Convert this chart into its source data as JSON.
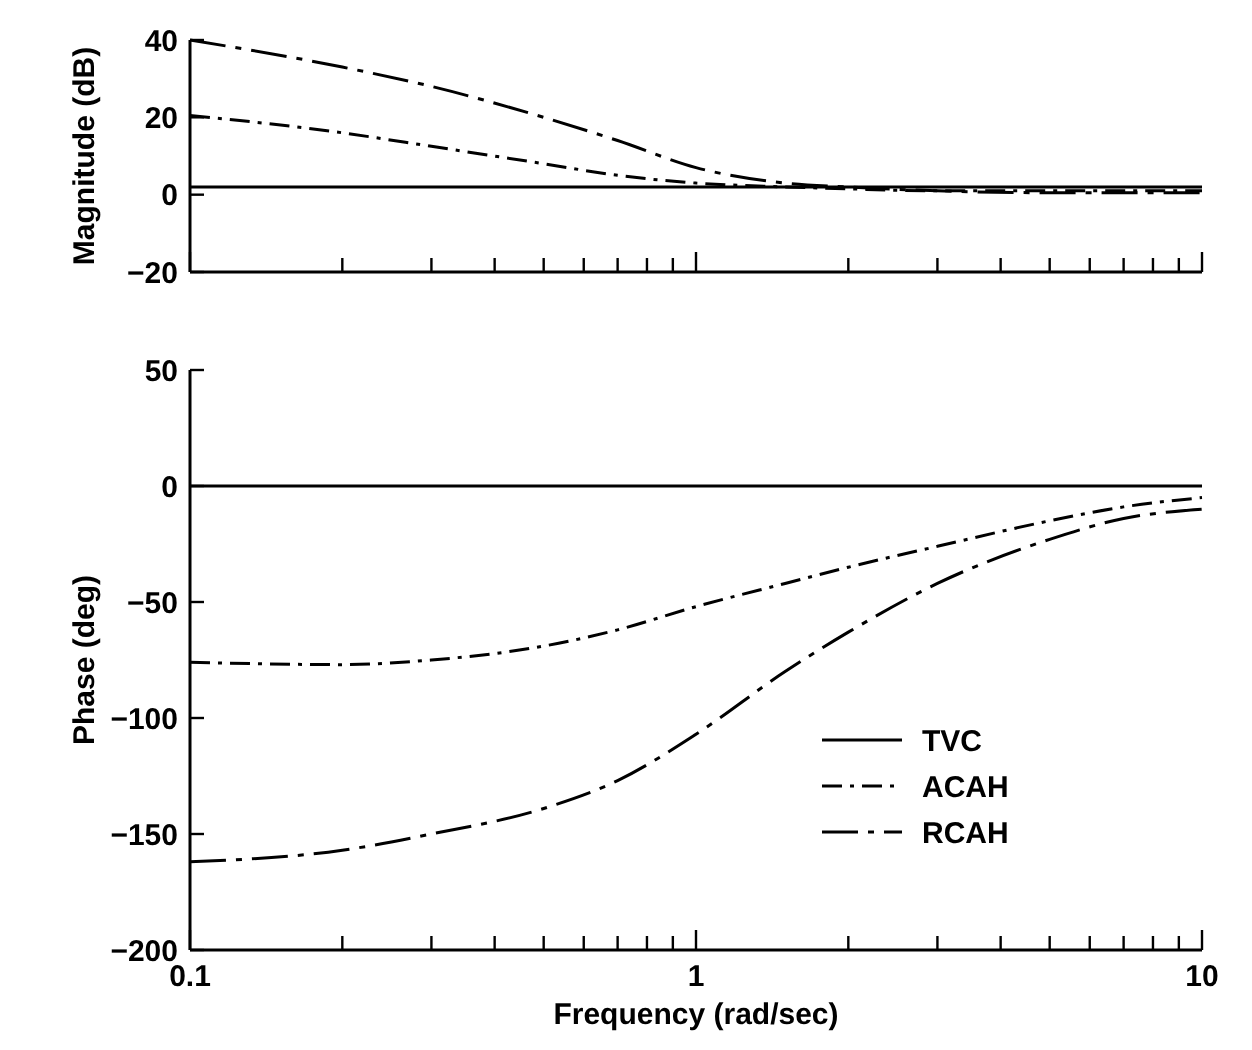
{
  "chart_data": [
    {
      "type": "line",
      "ylabel": "Magnitude (dB)",
      "log": "x",
      "xlim": [
        0.1,
        10
      ],
      "ylim": [
        -20,
        40
      ],
      "yticks": [
        -20,
        0,
        20,
        40
      ],
      "xticks": [
        0.1,
        {
          "value": 0.2,
          "label": null
        },
        {
          "value": 0.3,
          "label": null
        },
        {
          "value": 0.4,
          "label": null
        },
        {
          "value": 0.5,
          "label": null
        },
        {
          "value": 0.6,
          "label": null
        },
        {
          "value": 0.7,
          "label": null
        },
        {
          "value": 0.8,
          "label": null
        },
        {
          "value": 0.9,
          "label": null
        },
        1,
        {
          "value": 2,
          "label": null
        },
        {
          "value": 3,
          "label": null
        },
        {
          "value": 4,
          "label": null
        },
        {
          "value": 5,
          "label": null
        },
        {
          "value": 6,
          "label": null
        },
        {
          "value": 7,
          "label": null
        },
        {
          "value": 8,
          "label": null
        },
        {
          "value": 9,
          "label": null
        },
        10
      ],
      "tick_labels": "y",
      "legend": false,
      "grid": false,
      "x": [
        0.1,
        0.2,
        0.3,
        0.5,
        0.7,
        1,
        1.5,
        2,
        3,
        5,
        7,
        10
      ],
      "series": [
        {
          "color": "#000000",
          "line_style": "solid",
          "values": [
            2,
            2,
            2,
            2,
            2,
            2,
            2,
            2,
            2,
            2,
            2,
            2
          ]
        },
        {
          "color": "#000000",
          "line_style": "dashed",
          "values": [
            20.5,
            16,
            12.5,
            8,
            5,
            3,
            2,
            1.5,
            1,
            1,
            1,
            1
          ]
        },
        {
          "color": "#000000",
          "line_style": "dashed",
          "values": [
            40,
            33,
            28,
            20,
            14,
            7,
            3,
            2,
            1,
            0.5,
            0.5,
            0.5
          ]
        }
      ]
    },
    {
      "type": "line",
      "ylabel": "Phase (deg)",
      "xlabel": "Frequency (rad/sec)",
      "log": "x",
      "xlim": [
        0.1,
        10
      ],
      "ylim": [
        -200,
        50
      ],
      "yticks": [
        -200,
        -150,
        -100,
        -50,
        0,
        50
      ],
      "xticks": [
        0.1,
        {
          "value": 0.2,
          "label": null
        },
        {
          "value": 0.3,
          "label": null
        },
        {
          "value": 0.4,
          "label": null
        },
        {
          "value": 0.5,
          "label": null
        },
        {
          "value": 0.6,
          "label": null
        },
        {
          "value": 0.7,
          "label": null
        },
        {
          "value": 0.8,
          "label": null
        },
        {
          "value": 0.9,
          "label": null
        },
        1,
        {
          "value": 2,
          "label": null
        },
        {
          "value": 3,
          "label": null
        },
        {
          "value": 4,
          "label": null
        },
        {
          "value": 5,
          "label": null
        },
        {
          "value": 6,
          "label": null
        },
        {
          "value": 7,
          "label": null
        },
        {
          "value": 8,
          "label": null
        },
        {
          "value": 9,
          "label": null
        },
        10
      ],
      "legend": "bottom right",
      "grid": false,
      "x": [
        0.1,
        0.2,
        0.3,
        0.5,
        0.7,
        1,
        1.5,
        2,
        3,
        5,
        7,
        10
      ],
      "series": [
        {
          "name": "TVC",
          "color": "#000000",
          "line_style": "solid",
          "values": [
            0,
            0,
            0,
            0,
            0,
            0,
            0,
            0,
            0,
            0,
            0,
            0
          ]
        },
        {
          "name": "ACAH",
          "color": "#000000",
          "line_style": "dashed",
          "values": [
            -76,
            -77,
            -75,
            -69,
            -62,
            -52,
            -42,
            -35,
            -26,
            -15,
            -9,
            -5
          ]
        },
        {
          "name": "RCAH",
          "color": "#000000",
          "line_style": "dashed",
          "values": [
            -162,
            -157,
            -150,
            -139,
            -127,
            -107,
            -80,
            -63,
            -42,
            -23,
            -14,
            -10
          ]
        }
      ]
    }
  ]
}
